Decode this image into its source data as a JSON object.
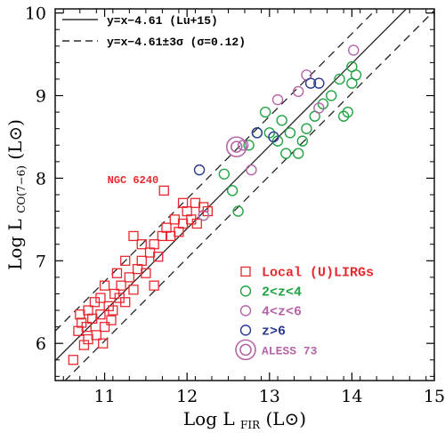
{
  "chart_data": {
    "type": "scatter",
    "xlabel": "Log L",
    "xlabel_sub": "FIR",
    "xlabel_unit": "(L⊙)",
    "ylabel": "Log L",
    "ylabel_sub": "CO(7−6)",
    "ylabel_unit": "(L⊙)",
    "xlim": [
      10.4,
      15.0
    ],
    "ylim": [
      5.55,
      10.05
    ],
    "xticks": [
      11,
      12,
      13,
      14,
      15
    ],
    "yticks": [
      6,
      7,
      8,
      9,
      10
    ],
    "fit": {
      "slope": 1.0,
      "intercept": -4.61,
      "sigma": 0.12
    },
    "legend_lines": [
      {
        "label": "y=x−4.61 (Lu+15)",
        "style": "solid"
      },
      {
        "label": "y=x−4.61±3σ (σ=0.12)",
        "style": "dashed"
      }
    ],
    "annotation": {
      "text": "NGC 6240",
      "x": 11.72,
      "y": 7.92
    },
    "colors": {
      "local": "#e8282e",
      "z2_4": "#22a344",
      "z4_6": "#b565a7",
      "z6": "#2b3a8f",
      "aless": "#b565a7",
      "fit": "#222222"
    },
    "legend_markers": [
      {
        "label": "Local (U)LIRGs",
        "marker": "square",
        "color": "#e8282e"
      },
      {
        "label": "2<z<4",
        "marker": "circle",
        "color": "#22a344"
      },
      {
        "label": "4<z<6",
        "marker": "circle",
        "color": "#b565a7"
      },
      {
        "label": "z>6",
        "marker": "circle",
        "color": "#2b3a8f"
      },
      {
        "label": "ALESS 73",
        "marker": "double-circle",
        "color": "#b565a7"
      }
    ],
    "series": [
      {
        "name": "Local (U)LIRGs",
        "marker": "square",
        "color": "#e8282e",
        "points": [
          [
            10.62,
            5.8
          ],
          [
            10.75,
            5.98
          ],
          [
            10.68,
            6.15
          ],
          [
            10.8,
            6.05
          ],
          [
            10.72,
            6.25
          ],
          [
            10.85,
            6.3
          ],
          [
            10.9,
            6.1
          ],
          [
            10.95,
            6.35
          ],
          [
            10.8,
            6.4
          ],
          [
            10.88,
            6.5
          ],
          [
            11.0,
            6.2
          ],
          [
            11.05,
            6.45
          ],
          [
            10.95,
            6.55
          ],
          [
            11.1,
            6.4
          ],
          [
            11.12,
            6.6
          ],
          [
            11.0,
            6.7
          ],
          [
            11.18,
            6.55
          ],
          [
            11.2,
            6.7
          ],
          [
            11.25,
            6.5
          ],
          [
            11.3,
            6.8
          ],
          [
            11.15,
            6.85
          ],
          [
            11.35,
            6.65
          ],
          [
            11.4,
            6.9
          ],
          [
            11.45,
            7.0
          ],
          [
            11.5,
            6.85
          ],
          [
            11.55,
            7.1
          ],
          [
            11.45,
            7.2
          ],
          [
            11.6,
            7.2
          ],
          [
            11.7,
            7.3
          ],
          [
            11.65,
            7.05
          ],
          [
            11.75,
            7.4
          ],
          [
            11.8,
            7.3
          ],
          [
            11.85,
            7.5
          ],
          [
            11.9,
            7.35
          ],
          [
            11.95,
            7.45
          ],
          [
            12.0,
            7.6
          ],
          [
            12.05,
            7.5
          ],
          [
            12.1,
            7.7
          ],
          [
            12.2,
            7.65
          ],
          [
            12.25,
            7.6
          ],
          [
            11.72,
            7.85
          ],
          [
            11.25,
            7.0
          ],
          [
            11.35,
            7.3
          ],
          [
            11.6,
            6.7
          ],
          [
            11.95,
            7.7
          ],
          [
            12.12,
            7.45
          ],
          [
            10.7,
            6.35
          ],
          [
            10.78,
            6.2
          ],
          [
            10.98,
            6.0
          ],
          [
            11.08,
            6.28
          ]
        ]
      },
      {
        "name": "2<z<4",
        "marker": "circle",
        "color": "#22a344",
        "points": [
          [
            12.45,
            8.05
          ],
          [
            12.55,
            7.85
          ],
          [
            12.62,
            7.6
          ],
          [
            12.75,
            8.4
          ],
          [
            12.85,
            8.55
          ],
          [
            13.0,
            8.55
          ],
          [
            13.1,
            8.45
          ],
          [
            13.15,
            8.7
          ],
          [
            13.25,
            8.55
          ],
          [
            13.35,
            8.3
          ],
          [
            13.45,
            8.6
          ],
          [
            13.55,
            8.75
          ],
          [
            13.65,
            8.9
          ],
          [
            13.75,
            9.0
          ],
          [
            13.85,
            9.2
          ],
          [
            13.95,
            8.8
          ],
          [
            14.0,
            9.15
          ],
          [
            14.05,
            9.25
          ],
          [
            14.0,
            9.35
          ],
          [
            13.9,
            8.75
          ],
          [
            12.95,
            8.8
          ],
          [
            13.4,
            8.45
          ],
          [
            13.2,
            8.3
          ]
        ]
      },
      {
        "name": "4<z<6",
        "marker": "circle",
        "color": "#b565a7",
        "points": [
          [
            12.2,
            7.55
          ],
          [
            12.78,
            8.1
          ],
          [
            13.1,
            8.95
          ],
          [
            13.35,
            9.05
          ],
          [
            13.45,
            9.25
          ],
          [
            14.02,
            9.55
          ],
          [
            13.6,
            8.85
          ],
          [
            12.68,
            8.4
          ]
        ]
      },
      {
        "name": "z>6",
        "marker": "circle",
        "color": "#2b3a8f",
        "points": [
          [
            12.15,
            8.1
          ],
          [
            12.85,
            8.55
          ],
          [
            13.05,
            8.5
          ],
          [
            13.5,
            9.15
          ],
          [
            13.6,
            9.15
          ]
        ]
      },
      {
        "name": "ALESS 73",
        "marker": "double-circle",
        "color": "#b565a7",
        "points": [
          [
            12.6,
            8.38
          ]
        ]
      }
    ]
  }
}
